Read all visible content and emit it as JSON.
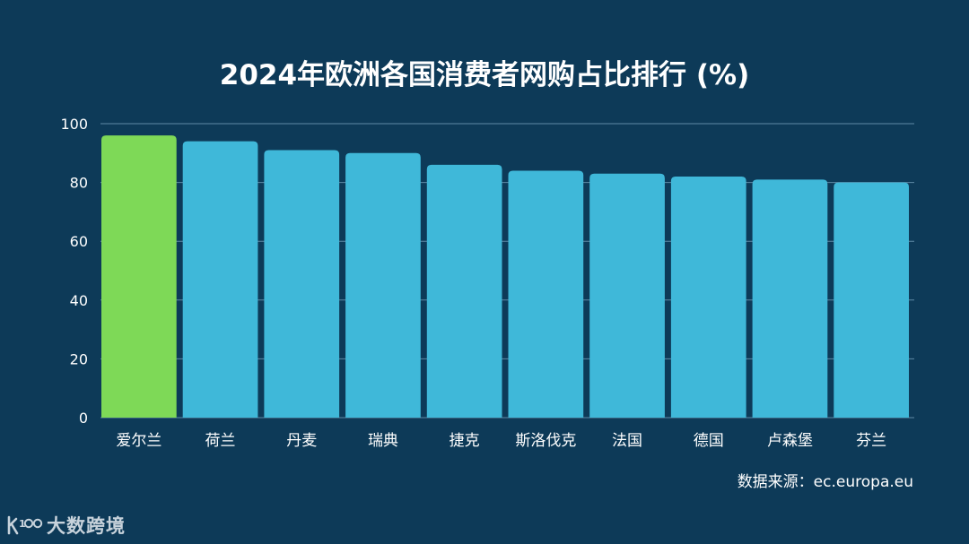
{
  "title": "2024年欧洲各国消费者网购占比排行 (%)",
  "source": "数据来源：ec.europa.eu",
  "logo": {
    "text": "大数跨境",
    "mark_icon": "k100-logo-icon"
  },
  "colors": {
    "background": "#0d3a58",
    "bar": "#3fb8d9",
    "highlight_bar": "#7ed957",
    "grid": "#5f8aa6",
    "text": "#ffffff"
  },
  "chart_data": {
    "type": "bar",
    "categories": [
      "爱尔兰",
      "荷兰",
      "丹麦",
      "瑞典",
      "捷克",
      "斯洛伐克",
      "法国",
      "德国",
      "卢森堡",
      "芬兰"
    ],
    "values": [
      96,
      94,
      91,
      90,
      86,
      84,
      83,
      82,
      81,
      80
    ],
    "highlight_index": 0,
    "ylim": [
      0,
      100
    ],
    "yticks": [
      0,
      20,
      40,
      60,
      80,
      100
    ],
    "grid": true,
    "xlabel": "",
    "ylabel": ""
  }
}
